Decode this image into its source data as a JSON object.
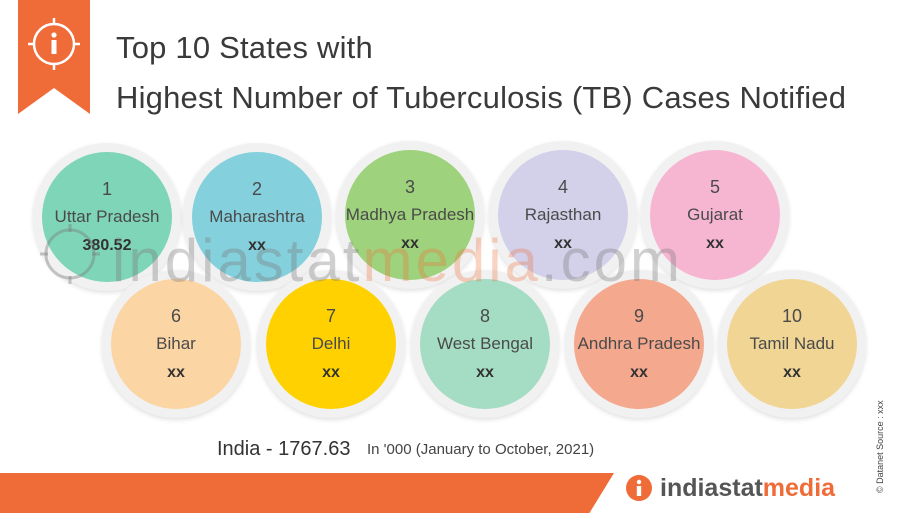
{
  "header": {
    "title_line1": "Top 10 States with",
    "title_line2": "Highest Number of Tuberculosis (TB) Cases Notified"
  },
  "states": [
    {
      "rank": "1",
      "name": "Uttar Pradesh",
      "value": "380.52",
      "color": "#7ed5b7"
    },
    {
      "rank": "2",
      "name": "Maharashtra",
      "value": "xx",
      "color": "#84d0dc"
    },
    {
      "rank": "3",
      "name": "Madhya Pradesh",
      "value": "xx",
      "color": "#9fd27c"
    },
    {
      "rank": "4",
      "name": "Rajasthan",
      "value": "xx",
      "color": "#d3d0ea"
    },
    {
      "rank": "5",
      "name": "Gujarat",
      "value": "xx",
      "color": "#f6b6d2"
    },
    {
      "rank": "6",
      "name": "Bihar",
      "value": "xx",
      "color": "#fbd5a4"
    },
    {
      "rank": "7",
      "name": "Delhi",
      "value": "xx",
      "color": "#ffd100"
    },
    {
      "rank": "8",
      "name": "West Bengal",
      "value": "xx",
      "color": "#a5dcc4"
    },
    {
      "rank": "9",
      "name": "Andhra Pradesh",
      "value": "xx",
      "color": "#f4a88e"
    },
    {
      "rank": "10",
      "name": "Tamil Nadu",
      "value": "xx",
      "color": "#f1d594"
    }
  ],
  "footer": {
    "total": "India - 1767.63",
    "unit": "In '000 (January to October, 2021)",
    "source": "© Datanet  Source : xxx"
  },
  "watermark": {
    "part1": "indiastat",
    "part2": "media",
    "part3": ".com"
  },
  "brand": {
    "name_part1": "indiastat",
    "name_part2": "media"
  },
  "icons": {
    "ribbon": "info-icon",
    "logo": "info-icon"
  },
  "colors": {
    "accent": "#ef6c39"
  }
}
